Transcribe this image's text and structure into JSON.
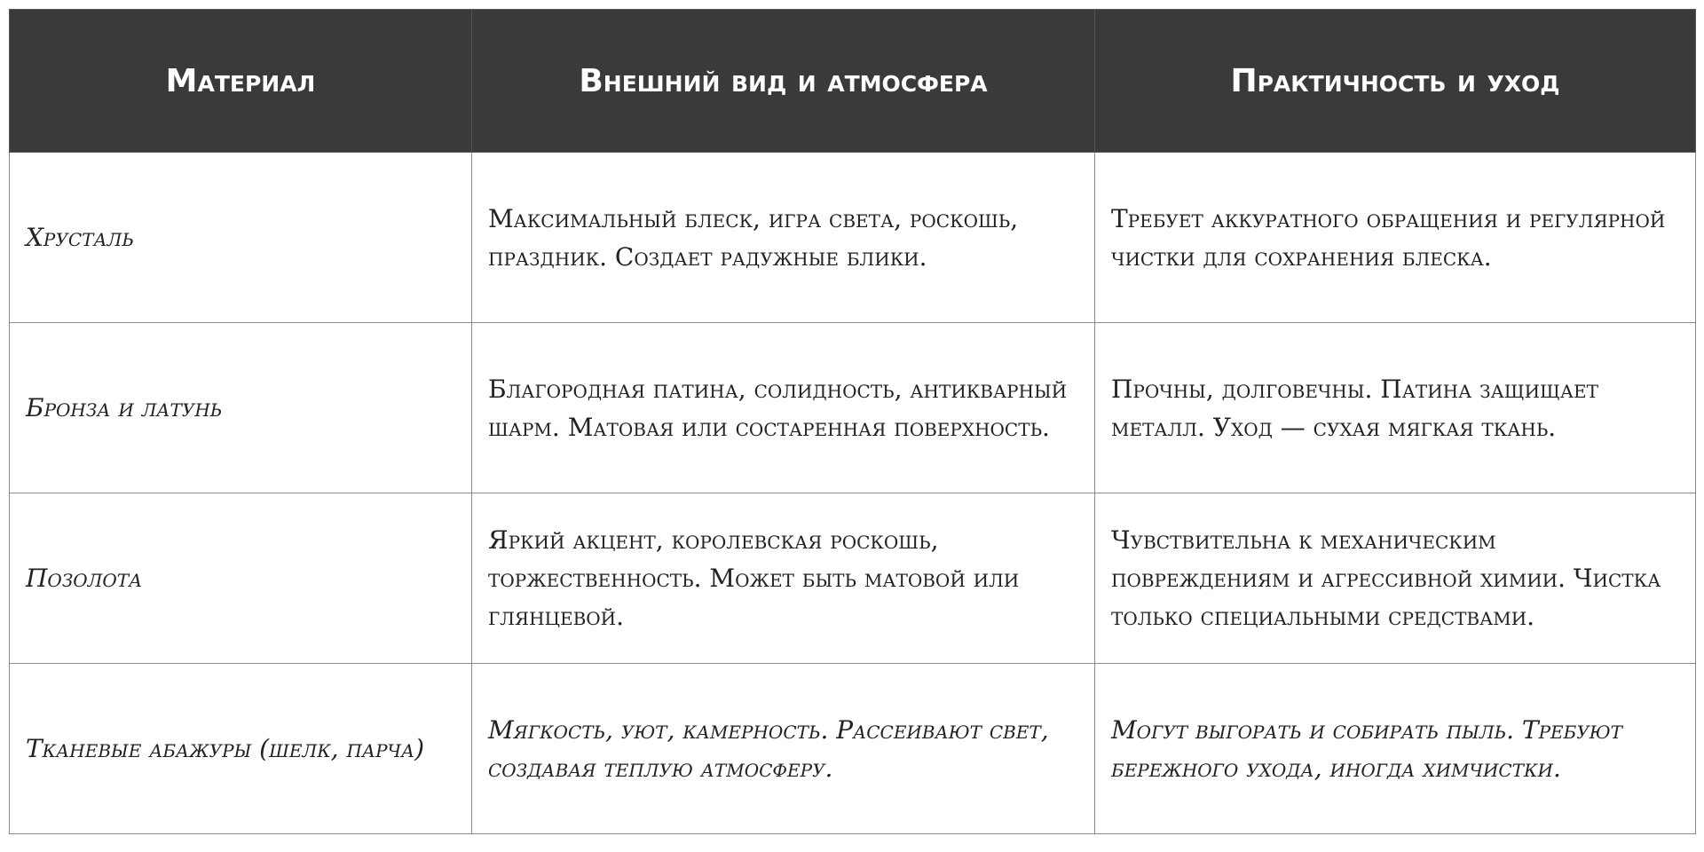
{
  "table": {
    "header": [
      "Материал",
      "Внешний вид и атмосфера",
      "Практичность и уход"
    ],
    "rows": [
      [
        "Хрусталь",
        "Максимальный блеск, игра света, роскошь, праздник. Создает радужные блики.",
        "Требует аккуратного обращения и регулярной чистки для сохранения блеска."
      ],
      [
        "Бронза и латунь",
        "Благородная патина, солидность, антикварный шарм. Матовая или состаренная поверхность.",
        "Прочны, долговечны. Патина защищает металл. Уход — сухая мягкая ткань."
      ],
      [
        "Позолота",
        "Яркий акцент, королевская роскошь, торжественность. Может быть матовой или глянцевой.",
        "Чувствительна к механическим повреждениям и агрессивной химии. Чистка только специальными средствами."
      ],
      [
        "Тканевые абажуры (шелк, парча)",
        "Мягкость, уют, камерность. Рассеивают свет, создавая теплую атмосферу.",
        "Могут выгорать и собирать пыль. Требуют бережного ухода, иногда химчистки."
      ]
    ]
  }
}
